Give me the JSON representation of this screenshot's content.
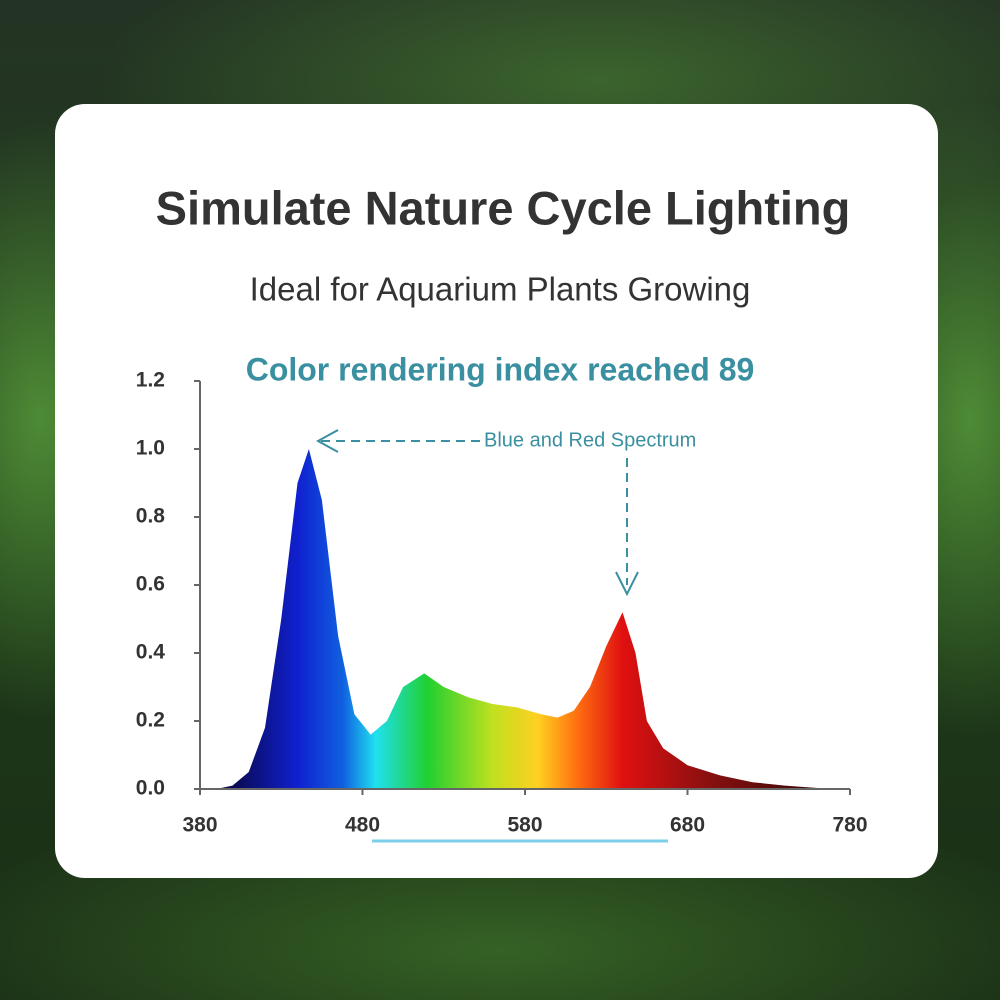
{
  "chart_data": {
    "type": "area",
    "title": "Simulate Nature Cycle Lighting",
    "subtitle": "Ideal for Aquarium Plants Growing",
    "chart_title": "Color rendering index reached 89",
    "annotation": "Blue and Red Spectrum",
    "x": [
      380,
      390,
      400,
      410,
      420,
      430,
      440,
      447,
      455,
      465,
      475,
      485,
      495,
      505,
      518,
      530,
      545,
      560,
      575,
      590,
      600,
      610,
      620,
      630,
      640,
      648,
      655,
      665,
      680,
      700,
      720,
      740,
      760,
      780
    ],
    "values": [
      0,
      0,
      0.01,
      0.05,
      0.18,
      0.5,
      0.9,
      1.0,
      0.85,
      0.45,
      0.22,
      0.16,
      0.2,
      0.3,
      0.34,
      0.3,
      0.27,
      0.25,
      0.24,
      0.22,
      0.21,
      0.23,
      0.3,
      0.42,
      0.52,
      0.4,
      0.2,
      0.12,
      0.07,
      0.04,
      0.02,
      0.01,
      0.003,
      0
    ],
    "xlim": [
      380,
      780
    ],
    "ylim": [
      0,
      1.2
    ],
    "xticks": [
      380,
      480,
      580,
      680,
      780
    ],
    "yticks": [
      {
        "value": 0,
        "label": "0.0"
      },
      {
        "value": 0.2,
        "label": "0.2"
      },
      {
        "value": 0.4,
        "label": "0.4"
      },
      {
        "value": 0.6,
        "label": "0.6"
      },
      {
        "value": 0.8,
        "label": "0.8"
      },
      {
        "value": 1.0,
        "label": "1.0"
      },
      {
        "value": 1.2,
        "label": "1.2"
      }
    ]
  }
}
